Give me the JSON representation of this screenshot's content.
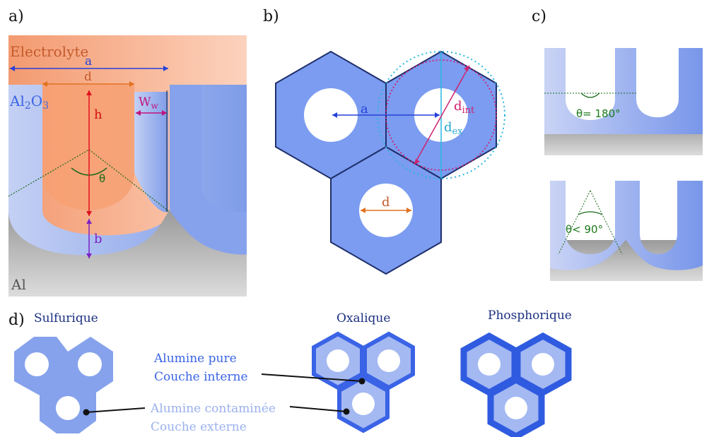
{
  "panels": {
    "a": {
      "letter": "a)"
    },
    "b": {
      "letter": "b)"
    },
    "c": {
      "letter": "c)"
    },
    "d": {
      "letter": "d)"
    }
  },
  "panel_a": {
    "electrolyte": "Electrolyte",
    "oxide_main": "Al",
    "oxide_sub1": "2",
    "oxide_o": "O",
    "oxide_sub2": "3",
    "metal": "Al",
    "label_a": "a",
    "label_d": "d",
    "label_h": "h",
    "label_ww_main": "W",
    "label_ww_sub": "w",
    "label_theta": "θ",
    "label_b": "b"
  },
  "panel_b": {
    "label_a": "a",
    "label_dint_main": "d",
    "label_dint_sub": "int",
    "label_dex_main": "d",
    "label_dex_sub": "ex",
    "label_d": "d"
  },
  "panel_c": {
    "angle_top": "θ= 180°",
    "angle_bottom": "θ< 90°"
  },
  "panel_d": {
    "sulfurique": "Sulfurique",
    "oxalique": "Oxalique",
    "phosphorique": "Phosphorique",
    "inner_line1": "Alumine pure",
    "inner_line2": "Couche interne",
    "outer_line1": "Alumine contaminée",
    "outer_line2": "Couche externe"
  },
  "colors": {
    "electrolyte": "#f7a882",
    "oxide": "#90a8ee",
    "metal": "#b0b0b0",
    "hex_fill": "#7b9cf0",
    "hex_stroke": "#1f2f6b",
    "dark_blue": "#3a63e6",
    "label_blue": "#1a2f80"
  }
}
